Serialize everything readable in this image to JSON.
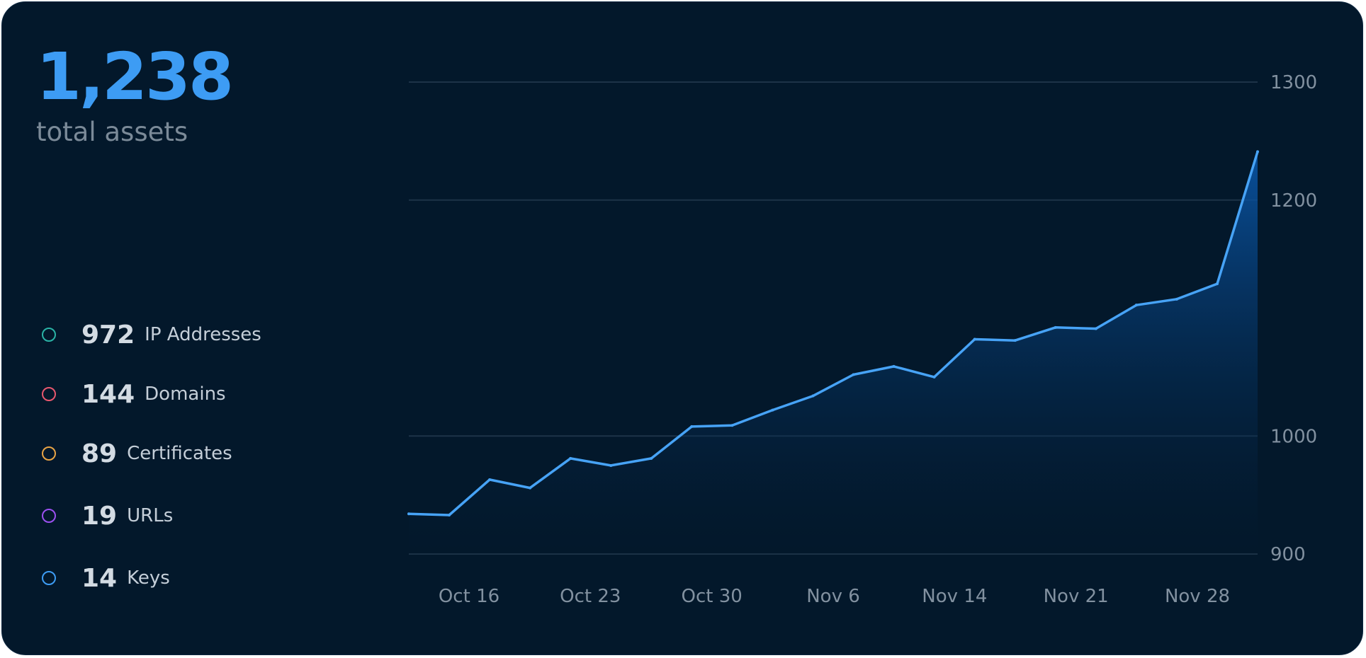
{
  "summary": {
    "total_value": "1,238",
    "total_label": "total assets"
  },
  "legend": [
    {
      "count": "972",
      "name": "IP Addresses",
      "color": "#2ab3a6"
    },
    {
      "count": "144",
      "name": "Domains",
      "color": "#e8576e"
    },
    {
      "count": "89",
      "name": "Certificates",
      "color": "#e8a445"
    },
    {
      "count": "19",
      "name": "URLs",
      "color": "#9b50f0"
    },
    {
      "count": "14",
      "name": "Keys",
      "color": "#3d9cf4"
    }
  ],
  "colors": {
    "card_background": "#03182b",
    "accent": "#3d9cf4",
    "line": "#47a3f6",
    "area_top": "#0a5ab0",
    "gridline": "#1d3348"
  },
  "chart_data": {
    "type": "area",
    "x_tick_labels": [
      "Oct 16",
      "Oct 23",
      "Oct 30",
      "Nov 6",
      "Nov 14",
      "Nov 21",
      "Nov 28"
    ],
    "y_tick_labels": [
      "900",
      "1000",
      "1200",
      "1300"
    ],
    "ylim": [
      900,
      1300
    ],
    "grid": true,
    "y_axis_position": "right",
    "series": [
      {
        "values": [
          934,
          933,
          963,
          956,
          981,
          975,
          981,
          1008,
          1009,
          1022,
          1034,
          1052,
          1059,
          1050,
          1082,
          1081,
          1092,
          1091,
          1111,
          1116,
          1129,
          1241
        ]
      }
    ]
  }
}
